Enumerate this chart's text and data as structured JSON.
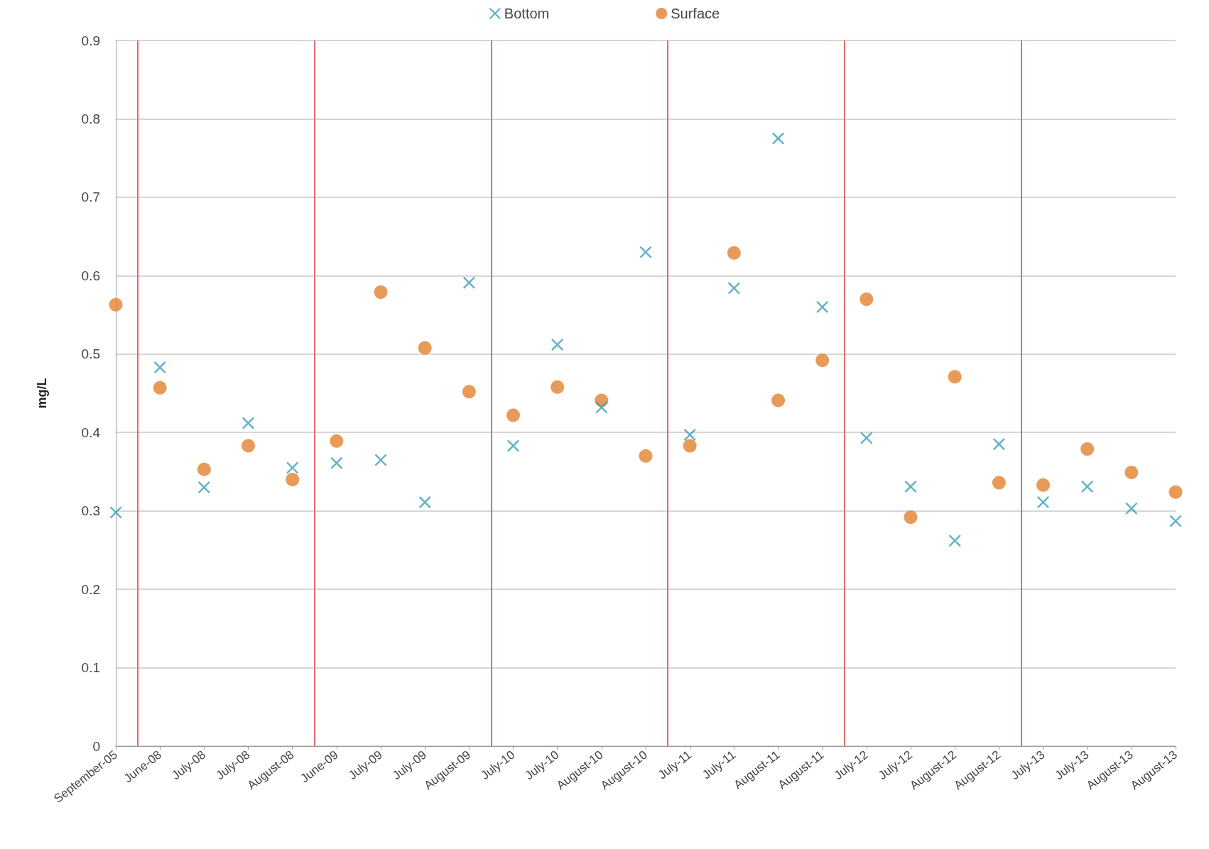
{
  "chart_data": {
    "type": "scatter",
    "ylabel": "mg/L",
    "categories": [
      "September-05",
      "June-08",
      "July-08",
      "July-08",
      "August-08",
      "June-09",
      "July-09",
      "July-09",
      "August-09",
      "July-10",
      "July-10",
      "August-10",
      "August-10",
      "July-11",
      "July-11",
      "August-11",
      "August-11",
      "July-12",
      "July-12",
      "August-12",
      "August-12",
      "July-13",
      "July-13",
      "August-13",
      "August-13"
    ],
    "series": [
      {
        "name": "Bottom",
        "color": "#3a9fb8",
        "marker": "cross",
        "values": [
          0.298,
          0.483,
          0.33,
          0.412,
          0.355,
          0.361,
          0.365,
          0.311,
          0.591,
          0.383,
          0.512,
          0.432,
          0.63,
          0.397,
          0.584,
          0.775,
          0.56,
          0.393,
          0.331,
          0.262,
          0.385,
          0.311,
          0.331,
          0.303,
          0.287
        ]
      },
      {
        "name": "Surface",
        "color": "#e2812e",
        "marker": "circle",
        "values": [
          0.563,
          0.457,
          0.353,
          0.383,
          0.34,
          0.389,
          0.579,
          0.508,
          0.452,
          0.422,
          0.458,
          0.441,
          0.37,
          0.383,
          0.629,
          0.441,
          0.492,
          0.57,
          0.292,
          0.471,
          0.336,
          0.333,
          0.379,
          0.349,
          0.324
        ]
      }
    ],
    "ylim": [
      0,
      0.9
    ],
    "yticks": [
      0,
      0.1,
      0.2,
      0.3,
      0.4,
      0.5,
      0.6,
      0.7,
      0.8,
      0.9
    ],
    "grid": "y",
    "legend": "top",
    "ref_lines": [
      {
        "axis": "x",
        "value": "June-08",
        "color": "#e06c6c"
      },
      {
        "axis": "x",
        "value": "June-09",
        "color": "#e06c6c"
      },
      {
        "axis": "x",
        "value": "July-10",
        "color": "#e06c6c"
      },
      {
        "axis": "x",
        "value": "July-11",
        "color": "#e06c6c"
      },
      {
        "axis": "x",
        "value": "July-12",
        "color": "#e06c6c"
      },
      {
        "axis": "x",
        "value": "July-13",
        "color": "#e06c6c"
      }
    ]
  }
}
